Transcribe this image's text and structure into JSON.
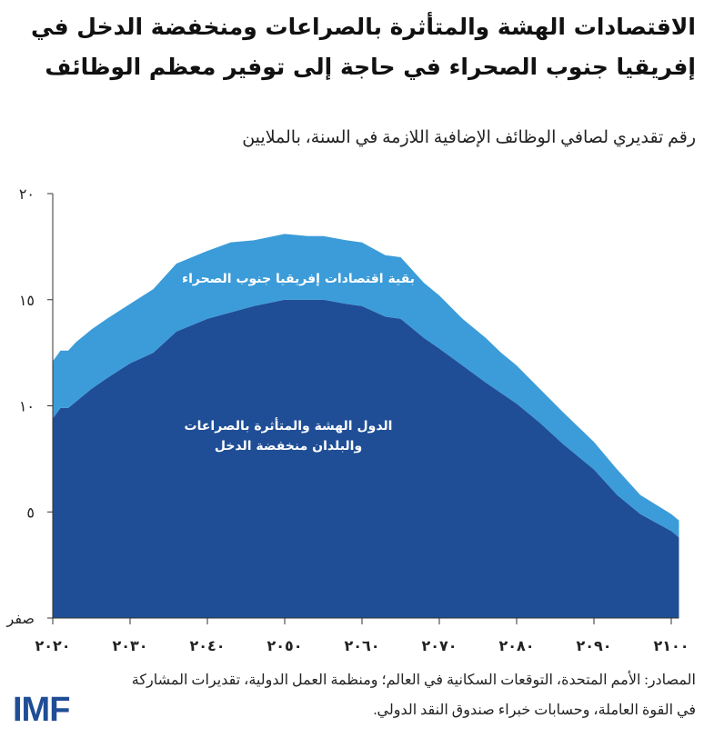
{
  "title": "الاقتصادات الهشة والمتأثرة بالصراعات ومنخفضة الدخل في إفريقيا جنوب الصحراء في حاجة إلى توفير معظم الوظائف",
  "subtitle": "رقم تقديري لصافي الوظائف الإضافية اللازمة في السنة، بالملايين",
  "source": "المصادر: الأمم المتحدة، التوقعات السكانية في العالم؛ ومنظمة العمل الدولية، تقديرات المشاركة في القوة العاملة، وحسابات خبراء صندوق النقد الدولي.",
  "logo": "IMF",
  "chart_data": {
    "type": "area",
    "stacked": true,
    "title": "",
    "xlabel": "",
    "ylabel": "",
    "xlim": [
      2020,
      2101
    ],
    "ylim": [
      0,
      20
    ],
    "grid": false,
    "legend": "inline labels",
    "y_ticks": [
      0,
      5,
      10,
      15,
      20
    ],
    "y_tick_labels": [
      "صفر",
      "٥",
      "١٠",
      "١٥",
      "٢٠"
    ],
    "x_ticks": [
      2020,
      2030,
      2040,
      2050,
      2060,
      2070,
      2080,
      2090,
      2100
    ],
    "x_tick_labels": [
      "٢٠٢٠",
      "٢٠٣٠",
      "٢٠٤٠",
      "٢٠٥٠",
      "٢٠٦٠",
      "٢٠٧٠",
      "٢٠٨٠",
      "٢٠٩٠",
      "٢١٠٠"
    ],
    "x": [
      2020,
      2021,
      2022,
      2023,
      2025,
      2027,
      2030,
      2033,
      2036,
      2040,
      2043,
      2046,
      2050,
      2053,
      2055,
      2058,
      2060,
      2063,
      2065,
      2068,
      2070,
      2073,
      2076,
      2078,
      2080,
      2083,
      2086,
      2090,
      2093,
      2096,
      2100,
      2101
    ],
    "series": [
      {
        "name": "الدول الهشة والمتأثرة بالصراعات والبلدان منخفضة الدخل",
        "label_lines": [
          "الدول الهشة والمتأثرة بالصراعات",
          "والبلدان منخفضة الدخل"
        ],
        "color": "#1f4e96",
        "values": [
          9.4,
          9.9,
          9.9,
          10.2,
          10.8,
          11.3,
          12.0,
          12.5,
          13.5,
          14.1,
          14.4,
          14.7,
          15.0,
          15.0,
          15.0,
          14.8,
          14.7,
          14.2,
          14.1,
          13.2,
          12.7,
          11.9,
          11.1,
          10.6,
          10.1,
          9.2,
          8.2,
          7.0,
          5.8,
          4.9,
          4.1,
          3.8
        ]
      },
      {
        "name": "بقية اقتصادات إفريقيا جنوب الصحراء",
        "label_lines": [
          "بقية اقتصادات إفريقيا جنوب الصحراء"
        ],
        "color": "#3b9cd9",
        "values": [
          2.7,
          2.7,
          2.7,
          2.8,
          2.8,
          2.8,
          2.8,
          3.0,
          3.2,
          3.2,
          3.3,
          3.1,
          3.1,
          3.0,
          3.0,
          3.0,
          3.0,
          2.9,
          2.9,
          2.6,
          2.5,
          2.2,
          2.1,
          1.9,
          1.8,
          1.6,
          1.5,
          1.3,
          1.2,
          0.9,
          0.8,
          0.8
        ]
      }
    ]
  }
}
